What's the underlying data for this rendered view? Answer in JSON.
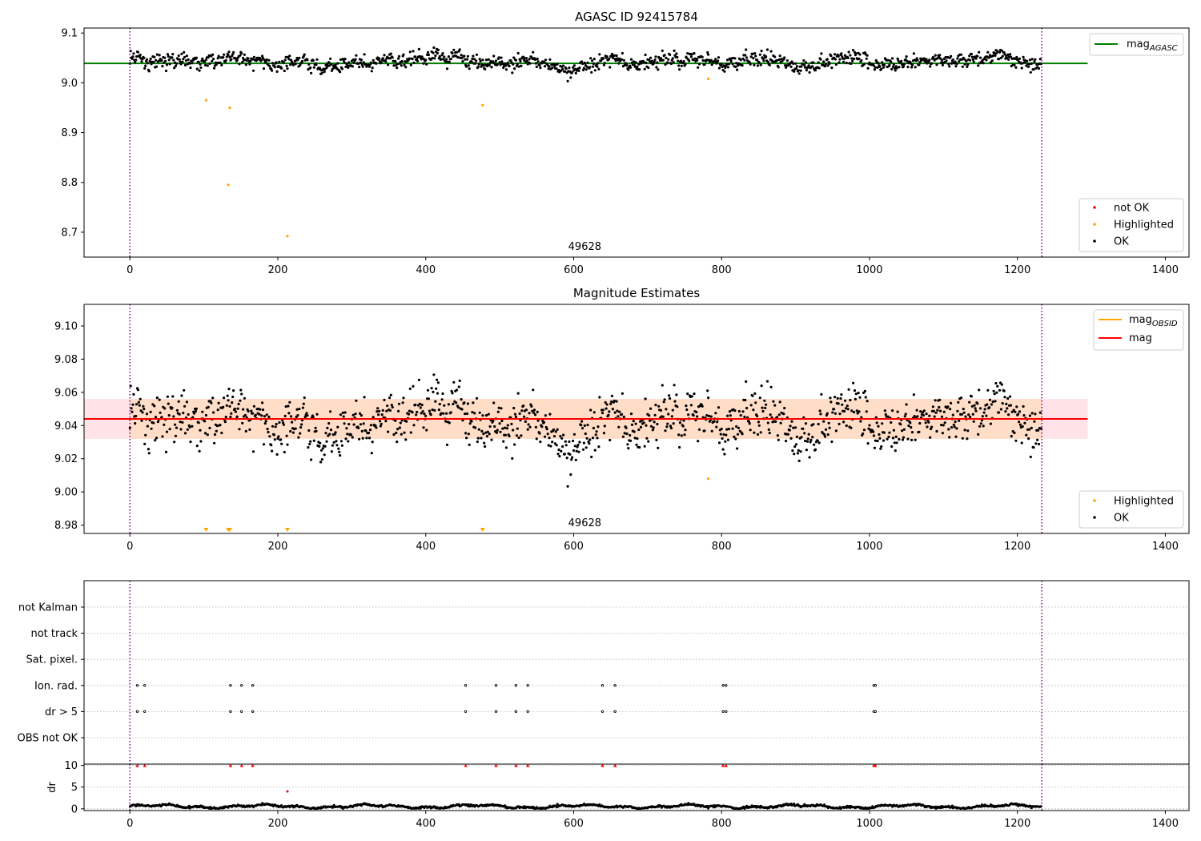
{
  "chart_data": [
    {
      "type": "scatter",
      "title": "AGASC ID 92415784",
      "xlim": [
        -62,
        1432
      ],
      "ylim": [
        8.65,
        9.11
      ],
      "xticks": [
        "0",
        "200",
        "400",
        "600",
        "800",
        "1000",
        "1200",
        "1400"
      ],
      "yticks": [
        "8.7",
        "8.8",
        "8.9",
        "9.0",
        "9.1"
      ],
      "obsid_label": "49628",
      "obsid_bounds": [
        0,
        1233
      ],
      "mag_agasc": 9.039,
      "mag_agasc_x_range": [
        -62,
        1295
      ],
      "ok_mean": 9.044,
      "ok_spread": 0.011,
      "ok_count": 1233,
      "highlighted": [
        {
          "x": 103,
          "y": 8.965
        },
        {
          "x": 135,
          "y": 8.95
        },
        {
          "x": 133,
          "y": 8.795
        },
        {
          "x": 213,
          "y": 8.692
        },
        {
          "x": 477,
          "y": 8.955
        },
        {
          "x": 782,
          "y": 9.008
        }
      ],
      "legend_lines": [
        {
          "label": "mag",
          "sub": "AGASC",
          "color": "#008000"
        }
      ],
      "legend_points": [
        {
          "label": "not OK",
          "color": "#ff0000"
        },
        {
          "label": "Highlighted",
          "color": "#ffa500"
        },
        {
          "label": "OK",
          "color": "#000000"
        }
      ]
    },
    {
      "type": "scatter",
      "title": "Magnitude Estimates",
      "xlim": [
        -62,
        1432
      ],
      "ylim": [
        8.975,
        9.113
      ],
      "xticks": [
        "0",
        "200",
        "400",
        "600",
        "800",
        "1000",
        "1200",
        "1400"
      ],
      "yticks": [
        "8.98",
        "9.00",
        "9.02",
        "9.04",
        "9.06",
        "9.08",
        "9.10"
      ],
      "obsid_label": "49628",
      "obsid_bounds": [
        0,
        1233
      ],
      "mag": 9.044,
      "mag_band": [
        9.032,
        9.056
      ],
      "obsid_band": [
        9.032,
        9.056
      ],
      "mag_x_range": [
        -62,
        1295
      ],
      "highlighted": [
        {
          "x": 782,
          "y": 9.008
        }
      ],
      "out_of_range_markers": [
        103,
        133,
        135,
        213,
        477
      ],
      "legend_lines": [
        {
          "label": "mag",
          "sub": "OBSID",
          "color": "#ffa500"
        },
        {
          "label": "mag",
          "sub": "",
          "color": "#ff0000"
        }
      ],
      "legend_points": [
        {
          "label": "Highlighted",
          "color": "#ffa500"
        },
        {
          "label": "OK",
          "color": "#000000"
        }
      ]
    },
    {
      "type": "scatter",
      "title": "",
      "xlim": [
        -62,
        1432
      ],
      "xticks": [
        "0",
        "200",
        "400",
        "600",
        "800",
        "1000",
        "1200",
        "1400"
      ],
      "flag_rows": [
        "not Kalman",
        "not track",
        "Sat. pixel.",
        "Ion. rad.",
        "dr > 5",
        "OBS not OK"
      ],
      "flag_points": {
        "Ion. rad.": [
          10,
          20,
          136,
          151,
          166,
          454,
          495,
          522,
          538,
          639,
          656,
          802,
          806,
          1006,
          1008
        ],
        "dr > 5": [
          10,
          20,
          136,
          151,
          166,
          454,
          495,
          522,
          538,
          639,
          656,
          802,
          806,
          1006,
          1008
        ]
      },
      "obsid_bounds": [
        0,
        1233
      ],
      "dr": {
        "ylabel": "dr",
        "ylim": [
          -0.4,
          10.3
        ],
        "yticks": [
          "0",
          "5",
          "10"
        ],
        "clipped_x": [
          10,
          20,
          136,
          151,
          166,
          454,
          495,
          522,
          538,
          639,
          656,
          802,
          806,
          1006,
          1008
        ],
        "clipped_value": 10,
        "outlier": {
          "x": 213,
          "y": 4.0
        }
      }
    }
  ],
  "colors": {
    "ok": "#000000",
    "highlighted": "#ffa500",
    "not_ok": "#ff0000",
    "agasc_line": "#008000",
    "mag_line": "#ff0000",
    "mag_band": "#ffc0cb",
    "obsid_band": "#ffdab9",
    "obsid_bound": "#800080"
  }
}
